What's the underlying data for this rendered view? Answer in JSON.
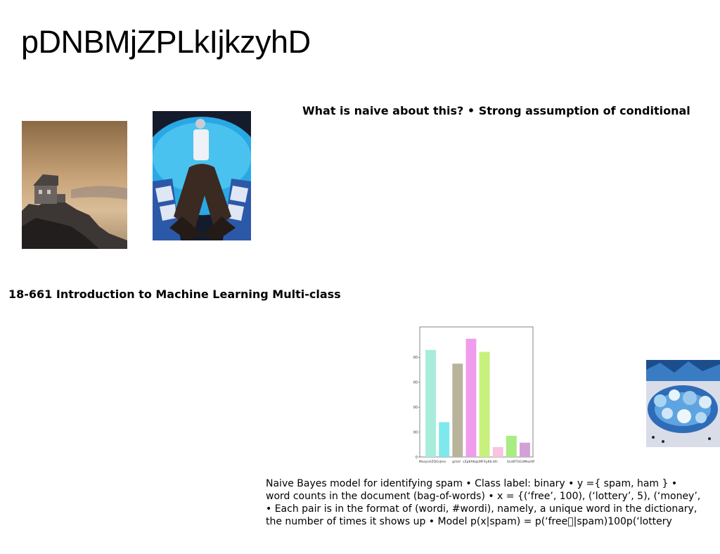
{
  "slide": {
    "title": "pDNBMjZPLkIjkzyhD",
    "naive_heading": "What is naive about this? • Strong assumption of conditional",
    "course_heading": "18-661 Introduction to Machine Learning Multi-class",
    "body_lines": [
      "Naive Bayes model for identifying spam • Class label: binary • y ={ spam, ham } •",
      "word counts in the document (bag-of-words) • x = {(‘free’, 100), (‘lottery’, 5), (‘money’,",
      "• Each pair is in the format of (wordi, #wordi), namely, a unique word in the dictionary,",
      "the number of times it shows up • Model p(x|spam) = p(‘free\u0000|spam)100p(‘lottery"
    ]
  },
  "images": {
    "house": "house-on-cliff-photo",
    "person": "person-in-blue-room-photo",
    "glass": "blue-crystal-glassware-photo"
  },
  "chart_data": {
    "type": "bar",
    "title": "",
    "xlabel": "",
    "ylabel": "",
    "categories": [
      "MorpLHZQGrJme",
      "grlaV",
      "cZpKAKqLMFXyKb bfc",
      "tzvWTGGdMozHF"
    ],
    "bars": [
      {
        "value": 860,
        "color": "#a8ecdc"
      },
      {
        "value": 280,
        "color": "#7ee8ec"
      },
      {
        "value": 750,
        "color": "#b8b49c"
      },
      {
        "value": 950,
        "color": "#f09cec"
      },
      {
        "value": 845,
        "color": "#c8f07c"
      },
      {
        "value": 80,
        "color": "#f8c4e0"
      },
      {
        "value": 170,
        "color": "#a8ec84"
      },
      {
        "value": 115,
        "color": "#d4a0d8"
      }
    ],
    "yticks": [
      "0",
      "200",
      "400",
      "600",
      "800"
    ],
    "ylim": [
      0,
      1000
    ],
    "grid": false,
    "legend": "none"
  }
}
